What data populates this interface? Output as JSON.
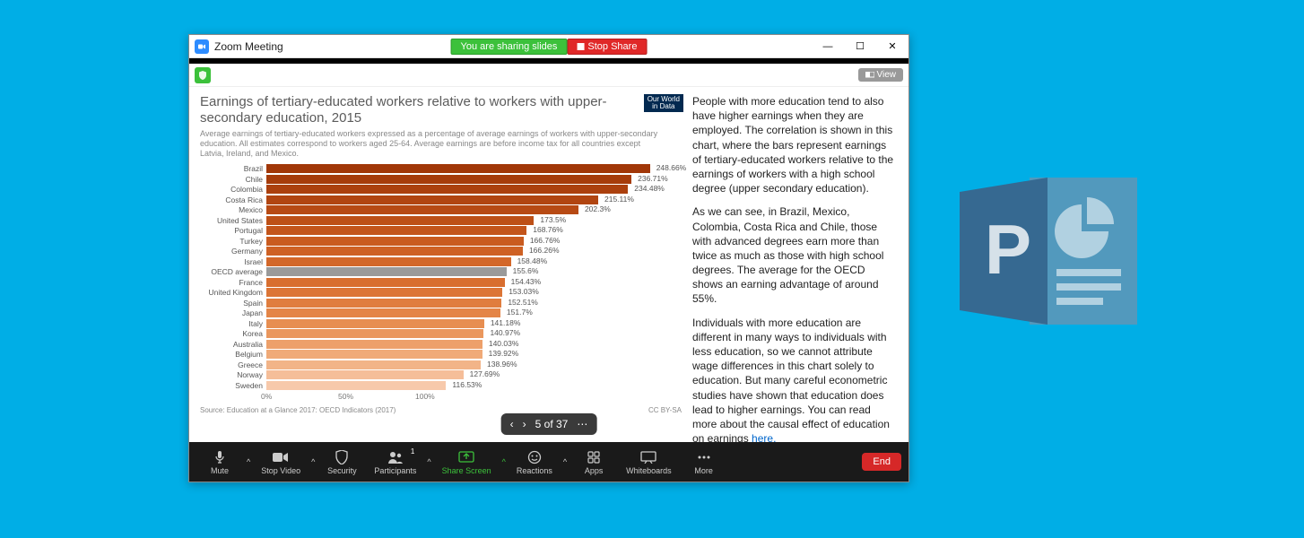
{
  "background_color": "#00aee6",
  "window": {
    "title": "Zoom Meeting",
    "sharing_badge": "You are sharing slides",
    "stop_share": "Stop Share",
    "view_button": "View"
  },
  "chart": {
    "title": "Earnings of tertiary-educated workers relative to workers with upper-secondary education, 2015",
    "subtitle": "Average earnings of tertiary-educated workers expressed as a percentage of average earnings of workers with upper-secondary education. All estimates correspond to workers aged 25-64. Average earnings are before income tax for all countries except Latvia, Ireland, and Mexico.",
    "owid_label": "Our World in Data",
    "source": "Source: Education at a Glance 2017: OECD Indicators (2017)",
    "license": "CC BY-SA",
    "max_value": 250,
    "x_ticks": [
      "0%",
      "50%",
      "100%"
    ],
    "bars": [
      {
        "label": "Brazil",
        "value": 248.66,
        "text": "248.66%",
        "color": "#a13708"
      },
      {
        "label": "Chile",
        "value": 236.71,
        "text": "236.71%",
        "color": "#a63c0b"
      },
      {
        "label": "Colombia",
        "value": 234.48,
        "text": "234.48%",
        "color": "#ab400e"
      },
      {
        "label": "Costa Rica",
        "value": 215.11,
        "text": "215.11%",
        "color": "#b14511"
      },
      {
        "label": "Mexico",
        "value": 202.3,
        "text": "202.3%",
        "color": "#b74a14"
      },
      {
        "label": "United States",
        "value": 173.5,
        "text": "173.5%",
        "color": "#bd5017"
      },
      {
        "label": "Portugal",
        "value": 168.76,
        "text": "168.76%",
        "color": "#c3551b"
      },
      {
        "label": "Turkey",
        "value": 166.76,
        "text": "166.76%",
        "color": "#c95b1f"
      },
      {
        "label": "Germany",
        "value": 166.26,
        "text": "166.26%",
        "color": "#ce6124"
      },
      {
        "label": "Israel",
        "value": 158.48,
        "text": "158.48%",
        "color": "#d36729"
      },
      {
        "label": "OECD average",
        "value": 155.6,
        "text": "155.6%",
        "color": "#9a9a9a"
      },
      {
        "label": "France",
        "value": 154.43,
        "text": "154.43%",
        "color": "#d86e2f"
      },
      {
        "label": "United Kingdom",
        "value": 153.03,
        "text": "153.03%",
        "color": "#dc7536"
      },
      {
        "label": "Spain",
        "value": 152.51,
        "text": "152.51%",
        "color": "#e07d3e"
      },
      {
        "label": "Japan",
        "value": 151.7,
        "text": "151.7%",
        "color": "#e48547"
      },
      {
        "label": "Italy",
        "value": 141.18,
        "text": "141.18%",
        "color": "#e78e51"
      },
      {
        "label": "Korea",
        "value": 140.97,
        "text": "140.97%",
        "color": "#ea975d"
      },
      {
        "label": "Australia",
        "value": 140.03,
        "text": "140.03%",
        "color": "#eda06a"
      },
      {
        "label": "Belgium",
        "value": 139.92,
        "text": "139.92%",
        "color": "#f0aa78"
      },
      {
        "label": "Greece",
        "value": 138.96,
        "text": "138.96%",
        "color": "#f2b488"
      },
      {
        "label": "Norway",
        "value": 127.69,
        "text": "127.69%",
        "color": "#f5be99"
      },
      {
        "label": "Sweden",
        "value": 116.53,
        "text": "116.53%",
        "color": "#f7c9ab"
      }
    ]
  },
  "commentary": {
    "p1": "People with more education tend to also have higher earnings when they are employed. The correlation is shown in this chart, where the bars represent earnings of tertiary-educated workers relative to the earnings of workers with a high school degree (upper secondary education).",
    "p2": "As we can see, in Brazil, Mexico, Colombia, Costa Rica and Chile, those with advanced degrees earn more than twice as much as those with high school degrees. The average for the OECD shows an earning advantage of around 55%.",
    "p3_pre": "Individuals with more education are different in many ways to individuals with less education, so we cannot attribute wage differences in this chart solely to education. But many careful econometric studies have shown that education does lead to higher earnings. You can read more about the causal effect of education on earnings ",
    "p3_link": "here."
  },
  "slide_nav": {
    "position": "5 of 37"
  },
  "toolbar": {
    "mute": "Mute",
    "stop_video": "Stop Video",
    "security": "Security",
    "participants": "Participants",
    "participants_count": "1",
    "share_screen": "Share Screen",
    "reactions": "Reactions",
    "apps": "Apps",
    "whiteboards": "Whiteboards",
    "more": "More",
    "end": "End"
  },
  "ppt_icon_color": "#366991"
}
